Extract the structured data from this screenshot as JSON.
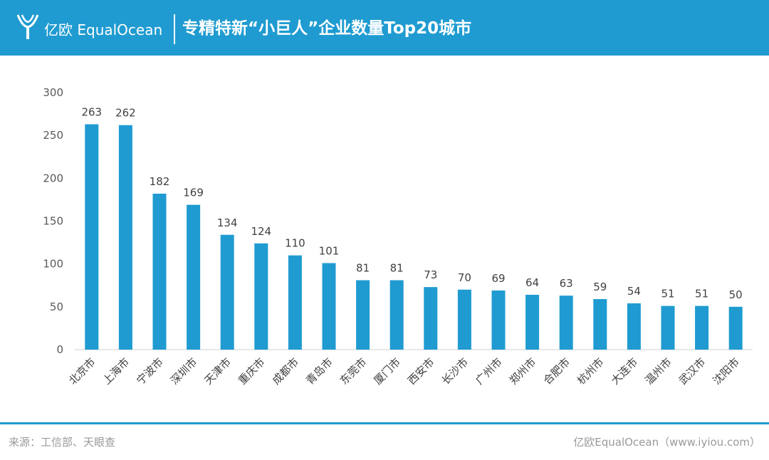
{
  "header": {
    "brand": "亿欧 EqualOcean",
    "title": "专精特新“小巨人”企业数量Top20城市",
    "logo_icon": "equalocean-logo-icon",
    "background": "#1f9bd1"
  },
  "chart_data": {
    "type": "bar",
    "categories": [
      "北京市",
      "上海市",
      "宁波市",
      "深圳市",
      "天津市",
      "重庆市",
      "成都市",
      "青岛市",
      "东莞市",
      "厦门市",
      "西安市",
      "长沙市",
      "广州市",
      "郑州市",
      "合肥市",
      "杭州市",
      "大连市",
      "温州市",
      "武汉市",
      "沈阳市"
    ],
    "values": [
      263,
      262,
      182,
      169,
      134,
      124,
      110,
      101,
      81,
      81,
      73,
      70,
      69,
      64,
      63,
      59,
      54,
      51,
      51,
      50
    ],
    "title": "专精特新“小巨人”企业数量Top20城市",
    "xlabel": "",
    "ylabel": "",
    "ylim": [
      0,
      300
    ],
    "yticks": [
      0,
      50,
      100,
      150,
      200,
      250,
      300
    ],
    "grid": false,
    "legend": "none",
    "bar_color": "#1f9bd1"
  },
  "footer": {
    "source": "来源：工信部、天眼查",
    "credit": "亿欧EqualOcean（www.iyiou.com）"
  }
}
